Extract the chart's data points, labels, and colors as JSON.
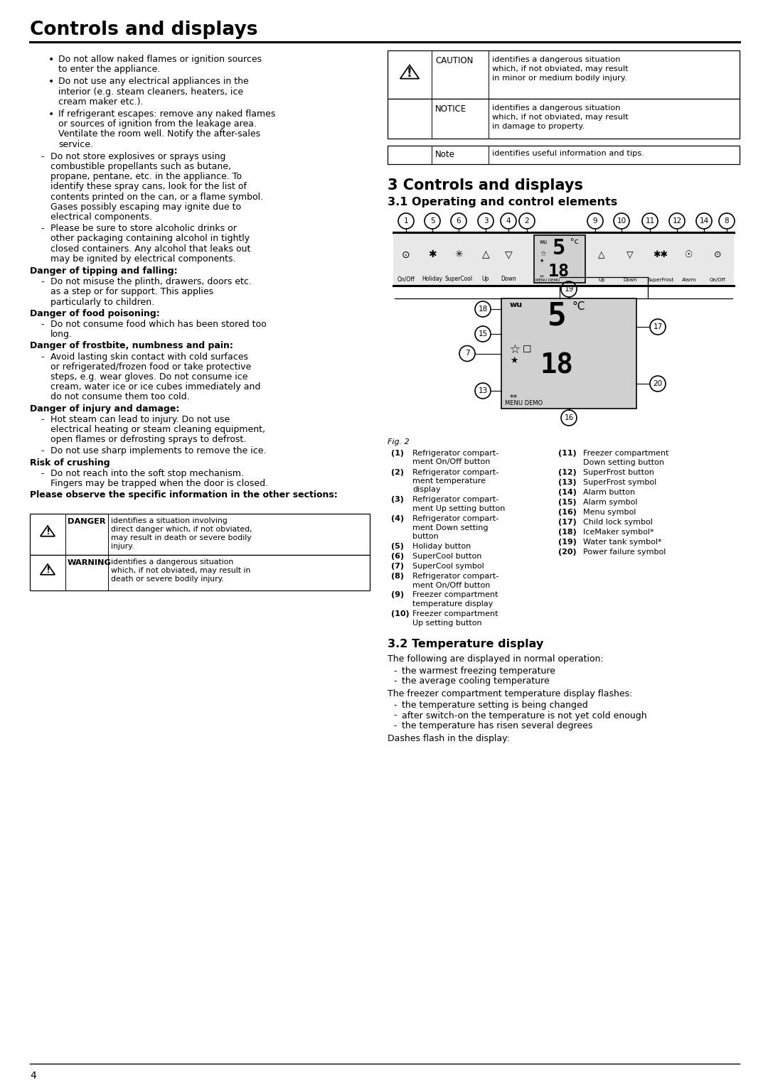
{
  "page_title": "Controls and displays",
  "page_number": "4",
  "bg_color": "#ffffff",
  "text_color": "#000000",
  "left_col_bullets": [
    "Do not allow naked flames or ignition sources to enter the appliance.",
    "Do not use any electrical appliances in the interior (e.g. steam cleaners, heaters, ice cream maker etc.).",
    "If refrigerant escapes: remove any naked flames or sources of ignition from the leakage area. Ventilate the room well. Notify the after-sales service."
  ],
  "dash1": "Do not store explosives or sprays using combustible propellants such as butane, propane, pentane, etc. in the appliance. To identify these spray cans, look for the list of contents printed on the can, or a flame symbol. Gases possibly escaping may ignite due to electrical components.",
  "dash2": "Please be sure to store alcoholic drinks or other packaging containing alcohol in tightly closed containers. Any alcohol that leaks out may be ignited by electrical components.",
  "danger_sections": [
    {
      "heading": "Danger of tipping and falling:",
      "items": [
        "Do not misuse the plinth, drawers, doors etc. as a step or for support. This applies particularly to children."
      ]
    },
    {
      "heading": "Danger of food poisoning:",
      "items": [
        "Do not consume food which has been stored too long."
      ]
    },
    {
      "heading": "Danger of frostbite, numbness and pain:",
      "items": [
        "Avoid lasting skin contact with cold surfaces or refrigerated/frozen food or take protective steps, e.g. wear gloves. Do not consume ice cream, water ice or ice cubes immediately and do not consume them too cold."
      ]
    },
    {
      "heading": "Danger of injury and damage:",
      "items": [
        "Hot steam can lead to injury. Do not use electrical heating or steam cleaning equipment, open flames or defrosting sprays to defrost.",
        "Do not use sharp implements to remove the ice."
      ]
    },
    {
      "heading": "Risk of crushing",
      "items": [
        "Do not reach into the soft stop mechanism. Fingers may be trapped when the door is closed."
      ]
    }
  ],
  "please_observe": "Please observe the specific information in the other sections:",
  "danger_row": {
    "label": "DANGER",
    "desc": "identifies a situation involving direct danger which, if not obviated, may result in death or severe bodily injury."
  },
  "warning_row": {
    "label": "WARNING",
    "desc": "identifies a dangerous situation which, if not obviated, may result in death or severe bodily injury."
  },
  "caution_row": {
    "label": "CAUTION",
    "desc": "identifies a dangerous situation which, if not obviated, may result in minor or medium bodily injury."
  },
  "notice_row": {
    "label": "NOTICE",
    "desc": "identifies a dangerous situation which, if not obviated, may result in damage to property."
  },
  "note_row": {
    "label": "Note",
    "desc": "identifies useful information and tips."
  },
  "section3_title": "3 Controls and displays",
  "section31_title": "3.1 Operating and control elements",
  "fig_items_left": [
    [
      "(1)",
      "Refrigerator compart-\nment On/Off button"
    ],
    [
      "(2)",
      "Refrigerator compart-\nment temperature\ndisplay"
    ],
    [
      "(3)",
      "Refrigerator compart-\nment Up setting button"
    ],
    [
      "(4)",
      "Refrigerator compart-\nment Down setting\nbutton"
    ],
    [
      "(5)",
      "Holiday button"
    ],
    [
      "(6)",
      "SuperCool button"
    ],
    [
      "(7)",
      "SuperCool symbol"
    ],
    [
      "(8)",
      "Refrigerator compart-\nment On/Off button"
    ],
    [
      "(9)",
      "Freezer compartment\ntemperature display"
    ],
    [
      "(10)",
      "Freezer compartment\nUp setting button"
    ]
  ],
  "fig_items_right": [
    [
      "(11)",
      "Freezer compartment\nDown setting button"
    ],
    [
      "(12)",
      "SuperFrost button"
    ],
    [
      "(13)",
      "SuperFrost symbol"
    ],
    [
      "(14)",
      "Alarm button"
    ],
    [
      "(15)",
      "Alarm symbol"
    ],
    [
      "(16)",
      "Menu symbol"
    ],
    [
      "(17)",
      "Child lock symbol"
    ],
    [
      "(18)",
      "IceMaker symbol*"
    ],
    [
      "(19)",
      "Water tank symbol*"
    ],
    [
      "(20)",
      "Power failure symbol"
    ]
  ],
  "section32_title": "3.2 Temperature display",
  "section32_text1": "The following are displayed in normal operation:",
  "section32_bullets1": [
    "the warmest freezing temperature",
    "the average cooling temperature"
  ],
  "section32_text2": "The freezer compartment temperature display flashes:",
  "section32_bullets2": [
    "the temperature setting is being changed",
    "after switch-on the temperature is not yet cold enough",
    "the temperature has risen several degrees"
  ],
  "section32_text3": "Dashes flash in the display:"
}
